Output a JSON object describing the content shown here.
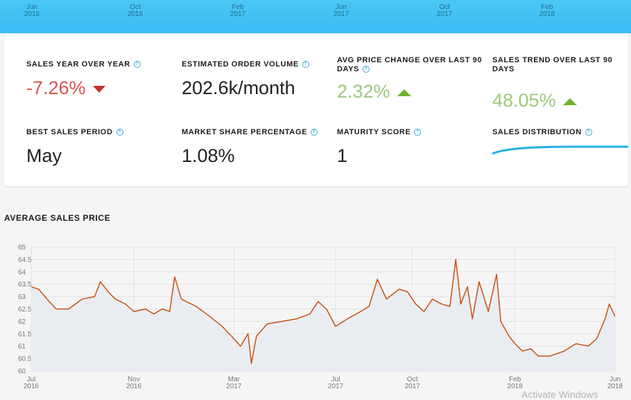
{
  "timeline": {
    "ticks": [
      {
        "month": "Jun",
        "year": "2016"
      },
      {
        "month": "Oct",
        "year": "2016"
      },
      {
        "month": "Feb",
        "year": "2017"
      },
      {
        "month": "Jun",
        "year": "2017"
      },
      {
        "month": "Oct",
        "year": "2017"
      },
      {
        "month": "Feb",
        "year": "2018"
      }
    ]
  },
  "stats": {
    "sales_yoy": {
      "label": "SALES YEAR OVER YEAR",
      "value": "-7.26%",
      "trend": "down"
    },
    "order_volume": {
      "label": "ESTIMATED ORDER VOLUME",
      "value": "202.6k/month"
    },
    "avg_price_change": {
      "label": "AVG PRICE CHANGE OVER LAST 90 DAYS",
      "value": "2.32%",
      "trend": "up"
    },
    "sales_trend": {
      "label": "SALES TREND OVER LAST 90 DAYS",
      "value": "48.05%",
      "trend": "up"
    },
    "best_period": {
      "label": "BEST SALES PERIOD",
      "value": "May"
    },
    "market_share": {
      "label": "MARKET SHARE PERCENTAGE",
      "value": "1.08%"
    },
    "maturity": {
      "label": "MATURITY SCORE",
      "value": "1"
    },
    "distribution": {
      "label": "SALES DISTRIBUTION"
    }
  },
  "help_icon": "?",
  "colors": {
    "negative": "#d9534f",
    "positive": "#9dc97a",
    "arrow_up": "#6cb52d",
    "arrow_down": "#c9302c",
    "accent": "#35a9d8",
    "line": "#c8500f",
    "area": "#e9edf2"
  },
  "section": {
    "title": "AVERAGE SALES PRICE"
  },
  "watermark": "Activate Windows",
  "chart_data": {
    "type": "area",
    "title": "AVERAGE SALES PRICE",
    "xlabel": "",
    "ylabel": "",
    "y_ticks": [
      "65",
      "64.5",
      "64",
      "63.5",
      "63",
      "62.5",
      "62",
      "61.5",
      "61",
      "60.5",
      "60"
    ],
    "ylim": [
      60,
      65
    ],
    "x_ticks": [
      {
        "date": "2016-07-01",
        "month": "Jul",
        "year": "2016"
      },
      {
        "date": "2016-11-01",
        "month": "Nov",
        "year": "2016"
      },
      {
        "date": "2017-03-01",
        "month": "Mar",
        "year": "2017"
      },
      {
        "date": "2017-07-01",
        "month": "Jul",
        "year": "2017"
      },
      {
        "date": "2017-10-01",
        "month": "Oct",
        "year": "2017"
      },
      {
        "date": "2018-02-01",
        "month": "Feb",
        "year": "2018"
      },
      {
        "date": "2018-06-01",
        "month": "Jun",
        "year": "2018"
      }
    ],
    "xlim": [
      "2016-07-01",
      "2018-06-01"
    ],
    "grid": true,
    "series": [
      {
        "points": [
          [
            "2016-07-01",
            63.4
          ],
          [
            "2016-07-10",
            63.3
          ],
          [
            "2016-07-20",
            62.9
          ],
          [
            "2016-07-31",
            62.5
          ],
          [
            "2016-08-15",
            62.5
          ],
          [
            "2016-08-31",
            62.9
          ],
          [
            "2016-09-15",
            63.0
          ],
          [
            "2016-09-22",
            63.6
          ],
          [
            "2016-10-01",
            63.2
          ],
          [
            "2016-10-10",
            62.9
          ],
          [
            "2016-10-22",
            62.7
          ],
          [
            "2016-11-01",
            62.4
          ],
          [
            "2016-11-15",
            62.5
          ],
          [
            "2016-11-25",
            62.3
          ],
          [
            "2016-12-05",
            62.5
          ],
          [
            "2016-12-14",
            62.4
          ],
          [
            "2016-12-20",
            63.8
          ],
          [
            "2016-12-28",
            62.9
          ],
          [
            "2017-01-15",
            62.6
          ],
          [
            "2017-01-31",
            62.2
          ],
          [
            "2017-02-15",
            61.8
          ],
          [
            "2017-03-01",
            61.3
          ],
          [
            "2017-03-09",
            61.0
          ],
          [
            "2017-03-18",
            61.5
          ],
          [
            "2017-03-22",
            60.3
          ],
          [
            "2017-03-28",
            61.4
          ],
          [
            "2017-04-10",
            61.9
          ],
          [
            "2017-04-28",
            62.0
          ],
          [
            "2017-05-15",
            62.1
          ],
          [
            "2017-05-31",
            62.3
          ],
          [
            "2017-06-10",
            62.8
          ],
          [
            "2017-06-20",
            62.5
          ],
          [
            "2017-07-01",
            61.8
          ],
          [
            "2017-07-15",
            62.1
          ],
          [
            "2017-07-31",
            62.4
          ],
          [
            "2017-08-10",
            62.6
          ],
          [
            "2017-08-20",
            63.7
          ],
          [
            "2017-08-31",
            62.9
          ],
          [
            "2017-09-15",
            63.3
          ],
          [
            "2017-09-25",
            63.2
          ],
          [
            "2017-10-05",
            62.7
          ],
          [
            "2017-10-15",
            62.4
          ],
          [
            "2017-10-25",
            62.9
          ],
          [
            "2017-11-05",
            62.7
          ],
          [
            "2017-11-15",
            62.6
          ],
          [
            "2017-11-22",
            64.5
          ],
          [
            "2017-11-28",
            62.7
          ],
          [
            "2017-12-06",
            63.4
          ],
          [
            "2017-12-12",
            62.1
          ],
          [
            "2017-12-20",
            63.6
          ],
          [
            "2017-12-31",
            62.4
          ],
          [
            "2018-01-10",
            63.9
          ],
          [
            "2018-01-15",
            62.0
          ],
          [
            "2018-01-25",
            61.4
          ],
          [
            "2018-02-01",
            61.1
          ],
          [
            "2018-02-10",
            60.8
          ],
          [
            "2018-02-20",
            60.9
          ],
          [
            "2018-03-01",
            60.6
          ],
          [
            "2018-03-15",
            60.6
          ],
          [
            "2018-04-01",
            60.8
          ],
          [
            "2018-04-15",
            61.1
          ],
          [
            "2018-04-30",
            61.0
          ],
          [
            "2018-05-10",
            61.3
          ],
          [
            "2018-05-20",
            62.1
          ],
          [
            "2018-05-25",
            62.7
          ],
          [
            "2018-06-01",
            62.2
          ]
        ]
      }
    ]
  }
}
